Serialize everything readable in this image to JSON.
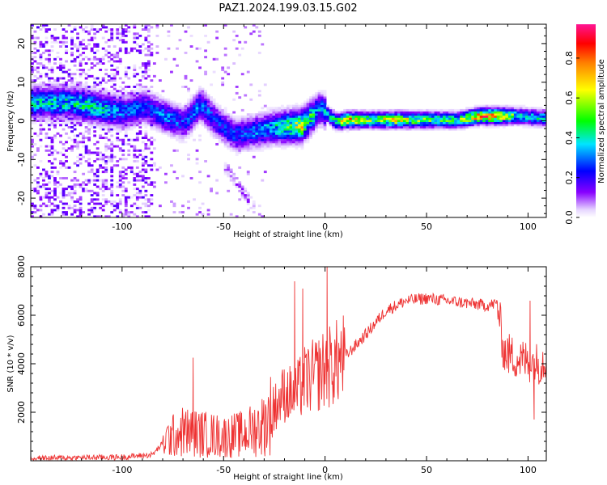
{
  "title": "PAZ1.2024.199.03.15.G02",
  "chart_data": [
    {
      "type": "heatmap",
      "xlabel": "Height of straight line (km)",
      "ylabel": "Frequency (Hz)",
      "xlim": [
        -145,
        109
      ],
      "ylim": [
        -25,
        25
      ],
      "xticks": [
        -100,
        -50,
        0,
        50,
        100
      ],
      "yticks": [
        20,
        10,
        0,
        -10,
        -20
      ],
      "colorbar": {
        "label": "Normalized spectral amplitude",
        "ticks": [
          "0.0",
          "0.2",
          "0.4",
          "0.6",
          "0.8"
        ],
        "range": [
          0,
          0.97
        ],
        "colors": [
          "#ffffff",
          "#c9a6ff",
          "#8800ff",
          "#0000ff",
          "#00e5ff",
          "#00ff00",
          "#ffff00",
          "#ff7f00",
          "#ff0000",
          "#ff1493"
        ]
      },
      "ridge": [
        {
          "x": -128,
          "f": 4.5,
          "a": 0.45
        },
        {
          "x": -120,
          "f": 4,
          "a": 0.5
        },
        {
          "x": -112,
          "f": 3,
          "a": 0.45
        },
        {
          "x": -100,
          "f": 2,
          "a": 0.35
        },
        {
          "x": -90,
          "f": 3.5,
          "a": 0.3
        },
        {
          "x": -80,
          "f": 1,
          "a": 0.35
        },
        {
          "x": -70,
          "f": -1,
          "a": 0.3
        },
        {
          "x": -62,
          "f": 4,
          "a": 0.35
        },
        {
          "x": -55,
          "f": 0,
          "a": 0.3
        },
        {
          "x": -45,
          "f": -4,
          "a": 0.3
        },
        {
          "x": -35,
          "f": -3,
          "a": 0.35
        },
        {
          "x": -25,
          "f": -2,
          "a": 0.45
        },
        {
          "x": -12,
          "f": -1.5,
          "a": 0.7
        },
        {
          "x": -3,
          "f": 3,
          "a": 0.35
        },
        {
          "x": 5,
          "f": -0.5,
          "a": 0.55
        },
        {
          "x": 10,
          "f": 0,
          "a": 0.85
        },
        {
          "x": 20,
          "f": 0,
          "a": 0.6
        },
        {
          "x": 35,
          "f": 0,
          "a": 0.75
        },
        {
          "x": 50,
          "f": 0,
          "a": 0.55
        },
        {
          "x": 65,
          "f": 0,
          "a": 0.55
        },
        {
          "x": 75,
          "f": 1,
          "a": 0.85
        },
        {
          "x": 85,
          "f": 1,
          "a": 0.85
        },
        {
          "x": 95,
          "f": 1,
          "a": 0.45
        },
        {
          "x": 105,
          "f": 0.5,
          "a": 0.45
        }
      ]
    },
    {
      "type": "line",
      "xlabel": "Height of straight line (km)",
      "ylabel": "SNR (10 * v/v)",
      "xlim": [
        -145,
        109
      ],
      "ylim": [
        0,
        8000
      ],
      "xticks": [
        -100,
        -50,
        0,
        50,
        100
      ],
      "yticks": [
        2000,
        4000,
        6000,
        8000
      ],
      "color": "#ee3333",
      "trend": [
        {
          "x": -145,
          "y": 100
        },
        {
          "x": -100,
          "y": 150
        },
        {
          "x": -85,
          "y": 250
        },
        {
          "x": -78,
          "y": 900
        },
        {
          "x": -70,
          "y": 1200
        },
        {
          "x": -60,
          "y": 1100
        },
        {
          "x": -50,
          "y": 1000
        },
        {
          "x": -40,
          "y": 1100
        },
        {
          "x": -30,
          "y": 1500
        },
        {
          "x": -25,
          "y": 2200
        },
        {
          "x": -20,
          "y": 2800
        },
        {
          "x": -15,
          "y": 2700
        },
        {
          "x": -10,
          "y": 3300
        },
        {
          "x": -5,
          "y": 3500
        },
        {
          "x": 0,
          "y": 3800
        },
        {
          "x": 5,
          "y": 4000
        },
        {
          "x": 10,
          "y": 4300
        },
        {
          "x": 20,
          "y": 5200
        },
        {
          "x": 30,
          "y": 6200
        },
        {
          "x": 40,
          "y": 6600
        },
        {
          "x": 50,
          "y": 6700
        },
        {
          "x": 60,
          "y": 6600
        },
        {
          "x": 70,
          "y": 6500
        },
        {
          "x": 80,
          "y": 6400
        },
        {
          "x": 85,
          "y": 6500
        },
        {
          "x": 88,
          "y": 4500
        },
        {
          "x": 95,
          "y": 4200
        },
        {
          "x": 100,
          "y": 4100
        },
        {
          "x": 105,
          "y": 4000
        },
        {
          "x": 109,
          "y": 4200
        }
      ],
      "spikes": [
        {
          "x": -65,
          "y": 4250
        },
        {
          "x": -15,
          "y": 7400
        },
        {
          "x": -11,
          "y": 7100
        },
        {
          "x": 1,
          "y": 8000
        },
        {
          "x": 2,
          "y": 2200
        },
        {
          "x": 101,
          "y": 6600
        },
        {
          "x": 103,
          "y": 1700
        }
      ]
    }
  ]
}
